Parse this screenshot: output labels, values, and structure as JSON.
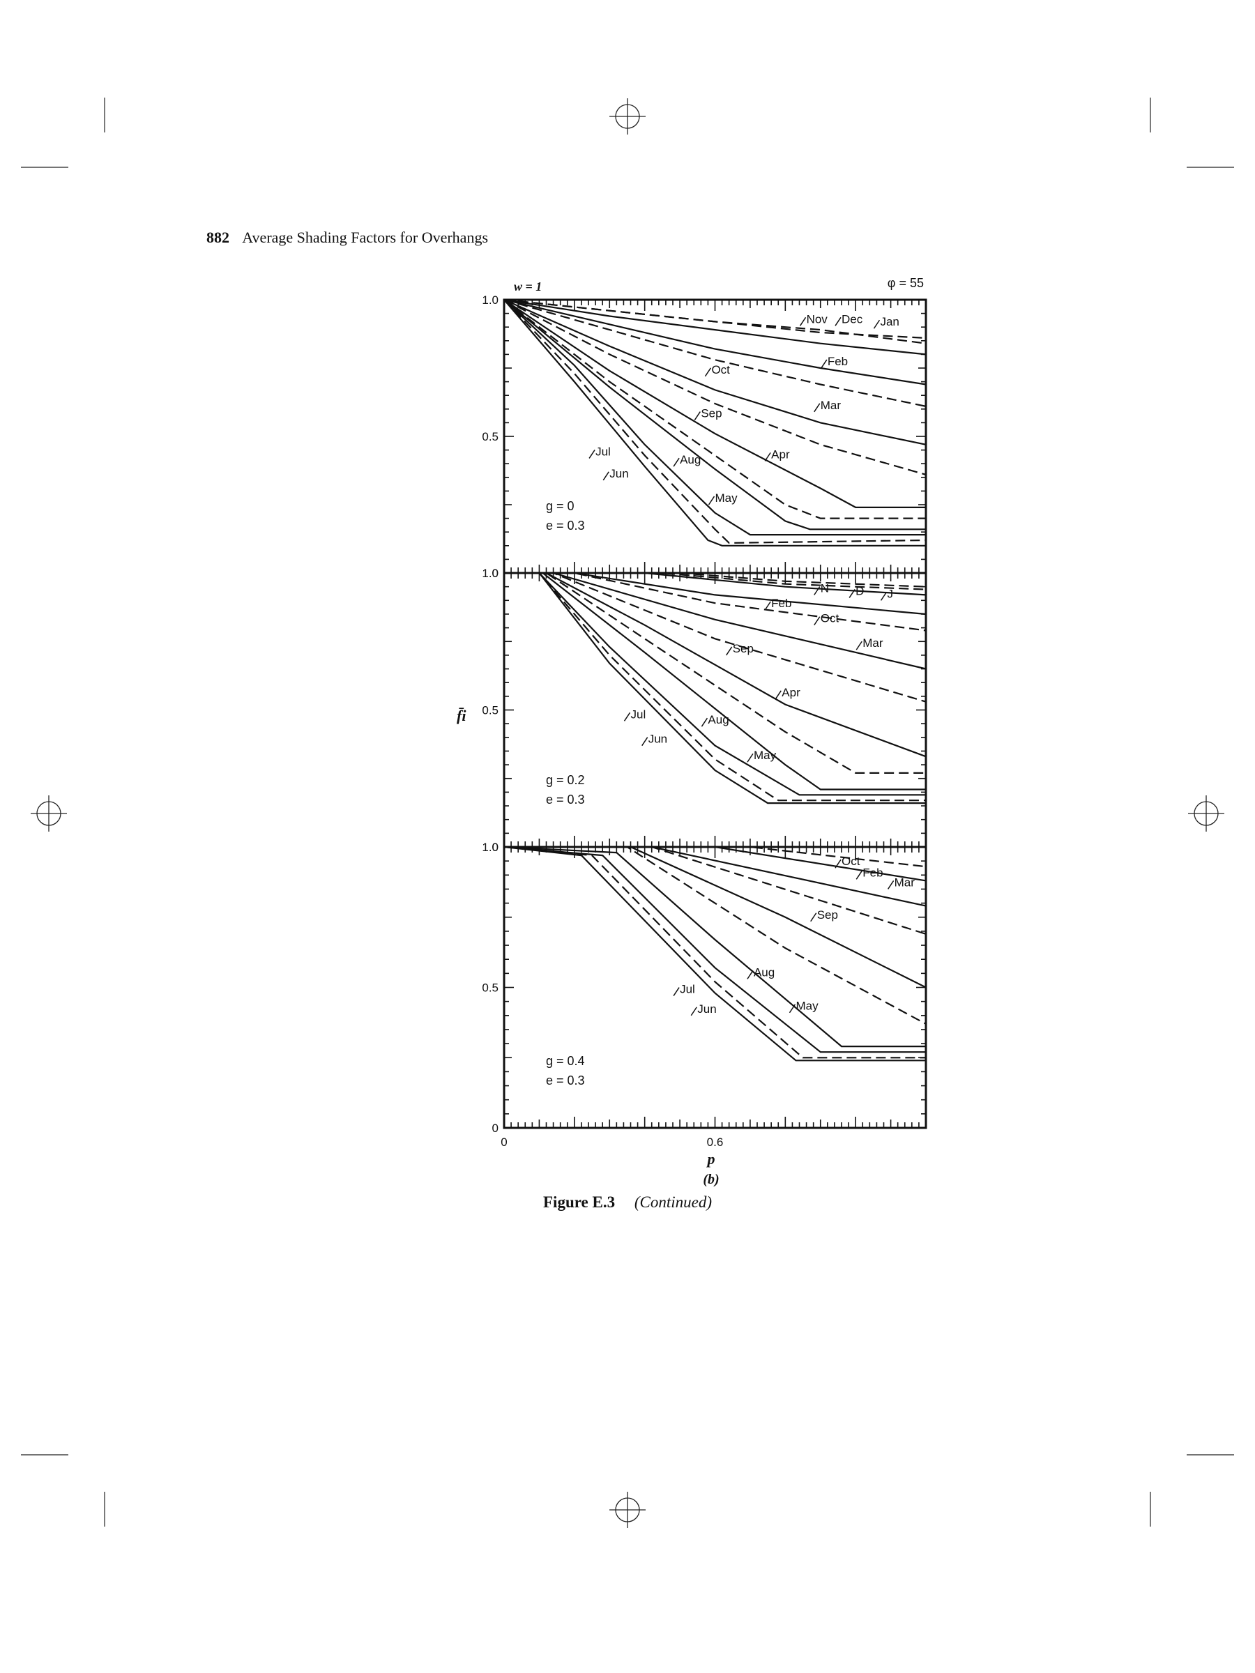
{
  "header": {
    "page_number": "882",
    "running_title": "Average Shading Factors for Overhangs"
  },
  "caption": {
    "label": "Figure E.3",
    "note": "(Continued)"
  },
  "figure": {
    "top_left_label": "w = 1",
    "top_right_label": "φ = 55",
    "y_axis_label": "f̄i",
    "x_axis_label": "p",
    "part_label": "(b)"
  },
  "chart_data": [
    {
      "type": "line",
      "panel": "g = 0, e = 0.3",
      "params": {
        "g": "g = 0",
        "e": "e = 0.3"
      },
      "xlim": [
        0,
        1.2
      ],
      "ylim": [
        0,
        1.0
      ],
      "x_ticks": [
        "0",
        "0.6"
      ],
      "y_ticks": [
        "0",
        "0.5",
        "1.0"
      ],
      "series": [
        {
          "name": "Jan",
          "dash": true,
          "points": [
            [
              0,
              1.0
            ],
            [
              0.3,
              0.96
            ],
            [
              0.6,
              0.92
            ],
            [
              0.9,
              0.89
            ],
            [
              1.2,
              0.84
            ]
          ]
        },
        {
          "name": "Dec",
          "dash": true,
          "points": [
            [
              0,
              1.0
            ],
            [
              0.3,
              0.96
            ],
            [
              0.6,
              0.92
            ],
            [
              0.9,
              0.88
            ],
            [
              1.2,
              0.86
            ]
          ]
        },
        {
          "name": "Nov",
          "dash": false,
          "points": [
            [
              0,
              1.0
            ],
            [
              0.3,
              0.94
            ],
            [
              0.6,
              0.89
            ],
            [
              0.9,
              0.84
            ],
            [
              1.2,
              0.8
            ]
          ]
        },
        {
          "name": "Feb",
          "dash": false,
          "points": [
            [
              0,
              1.0
            ],
            [
              0.3,
              0.91
            ],
            [
              0.6,
              0.82
            ],
            [
              0.9,
              0.75
            ],
            [
              1.2,
              0.69
            ]
          ]
        },
        {
          "name": "Oct",
          "dash": true,
          "points": [
            [
              0,
              1.0
            ],
            [
              0.3,
              0.89
            ],
            [
              0.6,
              0.78
            ],
            [
              0.9,
              0.69
            ],
            [
              1.2,
              0.61
            ]
          ]
        },
        {
          "name": "Mar",
          "dash": false,
          "points": [
            [
              0,
              1.0
            ],
            [
              0.3,
              0.83
            ],
            [
              0.6,
              0.67
            ],
            [
              0.9,
              0.55
            ],
            [
              1.2,
              0.47
            ]
          ]
        },
        {
          "name": "Sep",
          "dash": true,
          "points": [
            [
              0,
              1.0
            ],
            [
              0.3,
              0.8
            ],
            [
              0.6,
              0.62
            ],
            [
              0.9,
              0.47
            ],
            [
              1.2,
              0.36
            ]
          ]
        },
        {
          "name": "Apr",
          "dash": false,
          "points": [
            [
              0,
              1.0
            ],
            [
              0.3,
              0.74
            ],
            [
              0.6,
              0.51
            ],
            [
              0.9,
              0.31
            ],
            [
              1.0,
              0.24
            ],
            [
              1.2,
              0.24
            ]
          ]
        },
        {
          "name": "Aug",
          "dash": true,
          "points": [
            [
              0,
              1.0
            ],
            [
              0.3,
              0.7
            ],
            [
              0.6,
              0.43
            ],
            [
              0.8,
              0.25
            ],
            [
              0.9,
              0.2
            ],
            [
              1.2,
              0.2
            ]
          ]
        },
        {
          "name": "May",
          "dash": false,
          "points": [
            [
              0,
              1.0
            ],
            [
              0.3,
              0.68
            ],
            [
              0.6,
              0.38
            ],
            [
              0.8,
              0.19
            ],
            [
              0.87,
              0.16
            ],
            [
              1.2,
              0.16
            ]
          ]
        },
        {
          "name": "Jul",
          "dash": false,
          "points": [
            [
              0,
              1.0
            ],
            [
              0.2,
              0.76
            ],
            [
              0.4,
              0.47
            ],
            [
              0.6,
              0.22
            ],
            [
              0.7,
              0.14
            ],
            [
              1.2,
              0.14
            ]
          ]
        },
        {
          "name": "Jun",
          "dash": true,
          "points": [
            [
              0,
              1.0
            ],
            [
              0.2,
              0.73
            ],
            [
              0.4,
              0.43
            ],
            [
              0.6,
              0.16
            ],
            [
              0.64,
              0.11
            ],
            [
              1.2,
              0.12
            ]
          ]
        },
        {
          "name": "",
          "dash": false,
          "points": [
            [
              0,
              1.0
            ],
            [
              0.2,
              0.7
            ],
            [
              0.4,
              0.39
            ],
            [
              0.58,
              0.12
            ],
            [
              0.62,
              0.1
            ],
            [
              1.2,
              0.1
            ]
          ]
        }
      ],
      "labels": [
        {
          "text": "Nov",
          "x": 0.86,
          "y": 0.915
        },
        {
          "text": "Dec",
          "x": 0.96,
          "y": 0.915
        },
        {
          "text": "Jan",
          "x": 1.07,
          "y": 0.905
        },
        {
          "text": "Feb",
          "x": 0.92,
          "y": 0.76
        },
        {
          "text": "Oct",
          "x": 0.59,
          "y": 0.73
        },
        {
          "text": "Mar",
          "x": 0.9,
          "y": 0.6
        },
        {
          "text": "Sep",
          "x": 0.56,
          "y": 0.57
        },
        {
          "text": "Apr",
          "x": 0.76,
          "y": 0.42
        },
        {
          "text": "Aug",
          "x": 0.5,
          "y": 0.4
        },
        {
          "text": "May",
          "x": 0.6,
          "y": 0.26
        },
        {
          "text": "Jul",
          "x": 0.26,
          "y": 0.43
        },
        {
          "text": "Jun",
          "x": 0.3,
          "y": 0.35
        }
      ]
    },
    {
      "type": "line",
      "panel": "g = 0.2, e = 0.3",
      "params": {
        "g": "g = 0.2",
        "e": "e = 0.3"
      },
      "xlim": [
        0,
        1.2
      ],
      "ylim": [
        0,
        1.0
      ],
      "x_ticks": [
        "0",
        "0.6"
      ],
      "y_ticks": [
        "0",
        "0.5",
        "1.0"
      ],
      "series": [
        {
          "name": "J",
          "dash": true,
          "points": [
            [
              0,
              1.0
            ],
            [
              0.5,
              1.0
            ],
            [
              0.8,
              0.97
            ],
            [
              1.2,
              0.95
            ]
          ]
        },
        {
          "name": "D",
          "dash": true,
          "points": [
            [
              0,
              1.0
            ],
            [
              0.45,
              1.0
            ],
            [
              0.8,
              0.96
            ],
            [
              1.2,
              0.94
            ]
          ]
        },
        {
          "name": "N",
          "dash": false,
          "points": [
            [
              0,
              1.0
            ],
            [
              0.4,
              1.0
            ],
            [
              0.8,
              0.95
            ],
            [
              1.2,
              0.92
            ]
          ]
        },
        {
          "name": "Feb",
          "dash": false,
          "points": [
            [
              0,
              1.0
            ],
            [
              0.2,
              1.0
            ],
            [
              0.6,
              0.92
            ],
            [
              1.2,
              0.85
            ]
          ]
        },
        {
          "name": "Oct",
          "dash": true,
          "points": [
            [
              0,
              1.0
            ],
            [
              0.2,
              1.0
            ],
            [
              0.6,
              0.89
            ],
            [
              1.2,
              0.79
            ]
          ]
        },
        {
          "name": "Mar",
          "dash": false,
          "points": [
            [
              0,
              1.0
            ],
            [
              0.14,
              1.0
            ],
            [
              0.6,
              0.83
            ],
            [
              1.2,
              0.65
            ]
          ]
        },
        {
          "name": "Sep",
          "dash": true,
          "points": [
            [
              0,
              1.0
            ],
            [
              0.14,
              1.0
            ],
            [
              0.6,
              0.76
            ],
            [
              1.2,
              0.53
            ]
          ]
        },
        {
          "name": "Apr",
          "dash": false,
          "points": [
            [
              0,
              1.0
            ],
            [
              0.12,
              1.0
            ],
            [
              0.4,
              0.81
            ],
            [
              0.8,
              0.52
            ],
            [
              1.2,
              0.33
            ]
          ]
        },
        {
          "name": "Aug",
          "dash": true,
          "points": [
            [
              0,
              1.0
            ],
            [
              0.12,
              1.0
            ],
            [
              0.4,
              0.76
            ],
            [
              0.8,
              0.42
            ],
            [
              1.0,
              0.27
            ],
            [
              1.2,
              0.27
            ]
          ]
        },
        {
          "name": "May",
          "dash": false,
          "points": [
            [
              0,
              1.0
            ],
            [
              0.11,
              1.0
            ],
            [
              0.4,
              0.71
            ],
            [
              0.8,
              0.3
            ],
            [
              0.9,
              0.21
            ],
            [
              1.2,
              0.21
            ]
          ]
        },
        {
          "name": "Jul",
          "dash": false,
          "points": [
            [
              0,
              1.0
            ],
            [
              0.1,
              1.0
            ],
            [
              0.3,
              0.73
            ],
            [
              0.6,
              0.37
            ],
            [
              0.84,
              0.19
            ],
            [
              1.2,
              0.19
            ]
          ]
        },
        {
          "name": "Jun",
          "dash": true,
          "points": [
            [
              0,
              1.0
            ],
            [
              0.1,
              1.0
            ],
            [
              0.3,
              0.7
            ],
            [
              0.6,
              0.32
            ],
            [
              0.78,
              0.17
            ],
            [
              1.2,
              0.17
            ]
          ]
        },
        {
          "name": "",
          "dash": false,
          "points": [
            [
              0,
              1.0
            ],
            [
              0.1,
              1.0
            ],
            [
              0.3,
              0.67
            ],
            [
              0.6,
              0.28
            ],
            [
              0.75,
              0.16
            ],
            [
              1.2,
              0.16
            ]
          ]
        }
      ],
      "labels": [
        {
          "text": "N",
          "x": 0.9,
          "y": 0.93
        },
        {
          "text": "D",
          "x": 1.0,
          "y": 0.92
        },
        {
          "text": "J",
          "x": 1.09,
          "y": 0.91
        },
        {
          "text": "Feb",
          "x": 0.76,
          "y": 0.875
        },
        {
          "text": "Oct",
          "x": 0.9,
          "y": 0.82
        },
        {
          "text": "Mar",
          "x": 1.02,
          "y": 0.73
        },
        {
          "text": "Sep",
          "x": 0.65,
          "y": 0.71
        },
        {
          "text": "Apr",
          "x": 0.79,
          "y": 0.55
        },
        {
          "text": "Aug",
          "x": 0.58,
          "y": 0.45
        },
        {
          "text": "May",
          "x": 0.71,
          "y": 0.32
        },
        {
          "text": "Jul",
          "x": 0.36,
          "y": 0.47
        },
        {
          "text": "Jun",
          "x": 0.41,
          "y": 0.38
        }
      ]
    },
    {
      "type": "line",
      "panel": "g = 0.4, e = 0.3",
      "params": {
        "g": "g = 0.4",
        "e": "e = 0.3"
      },
      "xlim": [
        0,
        1.2
      ],
      "ylim": [
        0,
        1.0
      ],
      "x_ticks": [
        "0",
        "0.6"
      ],
      "y_ticks": [
        "0",
        "0.5",
        "1.0"
      ],
      "series": [
        {
          "name": "Oct",
          "dash": true,
          "points": [
            [
              0,
              1.0
            ],
            [
              0.7,
              1.0
            ],
            [
              1.2,
              0.93
            ]
          ]
        },
        {
          "name": "Feb",
          "dash": false,
          "points": [
            [
              0,
              1.0
            ],
            [
              0.6,
              1.0
            ],
            [
              1.2,
              0.88
            ]
          ]
        },
        {
          "name": "Mar",
          "dash": false,
          "points": [
            [
              0,
              1.0
            ],
            [
              0.42,
              1.0
            ],
            [
              1.2,
              0.79
            ]
          ]
        },
        {
          "name": "Sep",
          "dash": true,
          "points": [
            [
              0,
              1.0
            ],
            [
              0.42,
              1.0
            ],
            [
              1.2,
              0.69
            ]
          ]
        },
        {
          "name": "",
          "dash": false,
          "points": [
            [
              0,
              1.0
            ],
            [
              0.36,
              1.0
            ],
            [
              0.8,
              0.75
            ],
            [
              1.2,
              0.5
            ]
          ]
        },
        {
          "name": "Aug",
          "dash": true,
          "points": [
            [
              0,
              1.0
            ],
            [
              0.35,
              1.0
            ],
            [
              0.8,
              0.64
            ],
            [
              1.2,
              0.37
            ]
          ]
        },
        {
          "name": "May",
          "dash": false,
          "points": [
            [
              0,
              1.0
            ],
            [
              0.32,
              0.98
            ],
            [
              0.6,
              0.67
            ],
            [
              0.96,
              0.29
            ],
            [
              1.2,
              0.29
            ]
          ]
        },
        {
          "name": "Jul",
          "dash": false,
          "points": [
            [
              0,
              1.0
            ],
            [
              0.28,
              0.97
            ],
            [
              0.6,
              0.57
            ],
            [
              0.9,
              0.27
            ],
            [
              1.2,
              0.27
            ]
          ]
        },
        {
          "name": "Jun",
          "dash": true,
          "points": [
            [
              0,
              1.0
            ],
            [
              0.25,
              0.97
            ],
            [
              0.6,
              0.52
            ],
            [
              0.85,
              0.25
            ],
            [
              1.2,
              0.25
            ]
          ]
        },
        {
          "name": "",
          "dash": false,
          "points": [
            [
              0,
              1.0
            ],
            [
              0.22,
              0.97
            ],
            [
              0.6,
              0.48
            ],
            [
              0.83,
              0.24
            ],
            [
              1.2,
              0.24
            ]
          ]
        }
      ],
      "labels": [
        {
          "text": "Oct",
          "x": 0.96,
          "y": 0.935
        },
        {
          "text": "Feb",
          "x": 1.02,
          "y": 0.895
        },
        {
          "text": "Mar",
          "x": 1.11,
          "y": 0.86
        },
        {
          "text": "Sep",
          "x": 0.89,
          "y": 0.745
        },
        {
          "text": "Aug",
          "x": 0.71,
          "y": 0.54
        },
        {
          "text": "May",
          "x": 0.83,
          "y": 0.42
        },
        {
          "text": "Jul",
          "x": 0.5,
          "y": 0.48
        },
        {
          "text": "Jun",
          "x": 0.55,
          "y": 0.41
        }
      ]
    }
  ]
}
